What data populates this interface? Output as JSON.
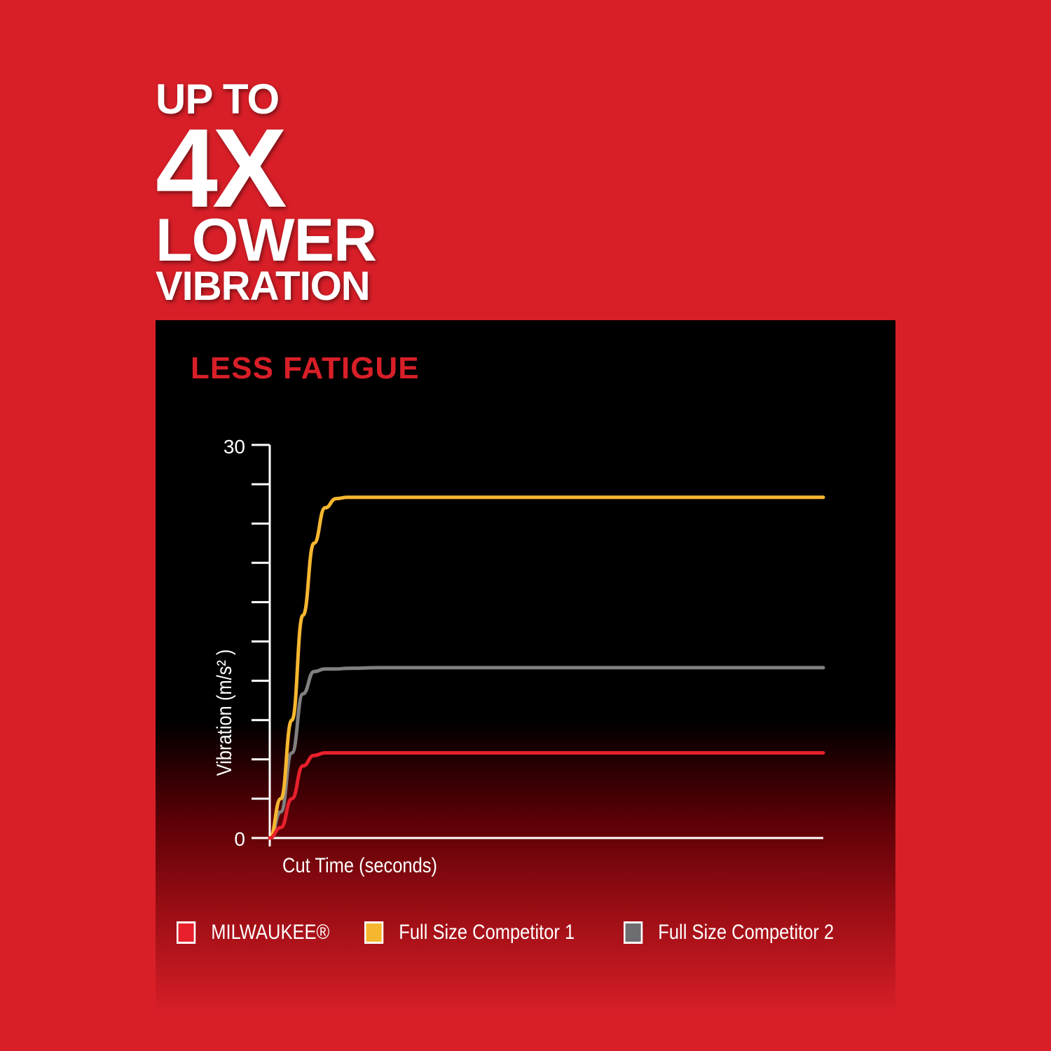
{
  "headline": {
    "line1": "UP TO",
    "line2": "4X",
    "line3": "LOWER",
    "line4": "VIBRATION"
  },
  "colors": {
    "background": "#d81f28",
    "panel": "#000000",
    "milwaukee": "#e8202c",
    "competitor1": "#f6b730",
    "competitor2": "#808080"
  },
  "chart_data": {
    "type": "line",
    "title": "LESS FATIGUE",
    "xlabel": "Cut Time (seconds)",
    "ylabel": "Vibration (m/s² )",
    "ylim": [
      0,
      30
    ],
    "yticks": [
      0,
      3,
      6,
      9,
      12,
      15,
      18,
      21,
      24,
      27,
      30
    ],
    "ytick_labels": [
      "0",
      "30"
    ],
    "xlim": [
      0,
      100
    ],
    "grid": false,
    "legend_position": "bottom",
    "x": [
      0,
      2,
      4,
      6,
      8,
      10,
      12,
      14,
      20,
      40,
      60,
      80,
      100
    ],
    "series": [
      {
        "name": "MILWAUKEE®",
        "color": "#e8202c",
        "values": [
          0,
          0.8,
          3,
          5.5,
          6.3,
          6.5,
          6.5,
          6.5,
          6.5,
          6.5,
          6.5,
          6.5,
          6.5
        ]
      },
      {
        "name": "Full Size Competitor 1",
        "color": "#f6b730",
        "values": [
          0,
          3,
          9,
          17,
          22.5,
          25.2,
          25.9,
          26,
          26,
          26,
          26,
          26,
          26
        ]
      },
      {
        "name": "Full Size Competitor 2",
        "color": "#808080",
        "values": [
          0,
          2,
          6.5,
          11,
          12.7,
          12.9,
          12.9,
          12.95,
          13,
          13,
          13,
          13,
          13
        ]
      }
    ]
  }
}
